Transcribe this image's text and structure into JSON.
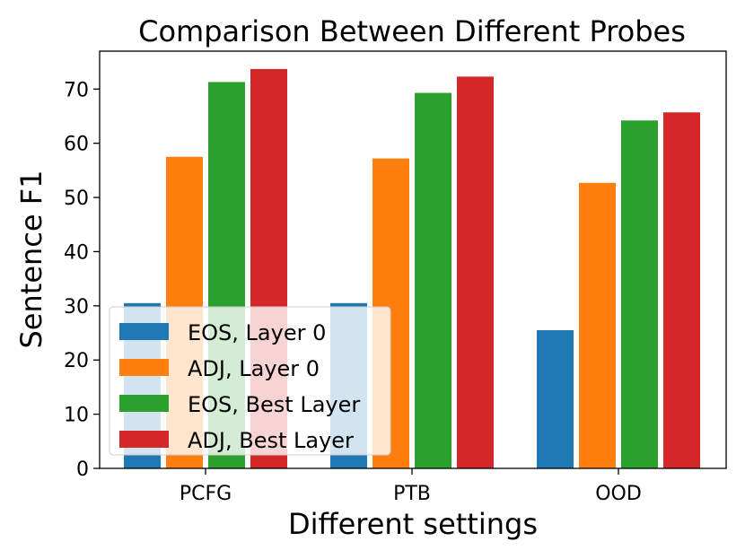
{
  "chart_data": {
    "type": "bar",
    "title": "Comparison Between Different Probes",
    "xlabel": "Different settings",
    "ylabel": "Sentence F1",
    "categories": [
      "PCFG",
      "PTB",
      "OOD"
    ],
    "ylim": [
      0,
      77
    ],
    "yticks": [
      0,
      10,
      20,
      30,
      40,
      50,
      60,
      70
    ],
    "legend_location": "lower-left",
    "series": [
      {
        "name": "EOS, Layer 0",
        "color": "#1f77b4",
        "values": [
          30.5,
          30.5,
          25.5
        ]
      },
      {
        "name": "ADJ, Layer 0",
        "color": "#ff7f0e",
        "values": [
          57.5,
          57.2,
          52.7
        ]
      },
      {
        "name": "EOS, Best Layer",
        "color": "#2ca02c",
        "values": [
          71.3,
          69.3,
          64.2
        ]
      },
      {
        "name": "ADJ, Best Layer",
        "color": "#d62728",
        "values": [
          73.7,
          72.3,
          65.7
        ]
      }
    ]
  }
}
